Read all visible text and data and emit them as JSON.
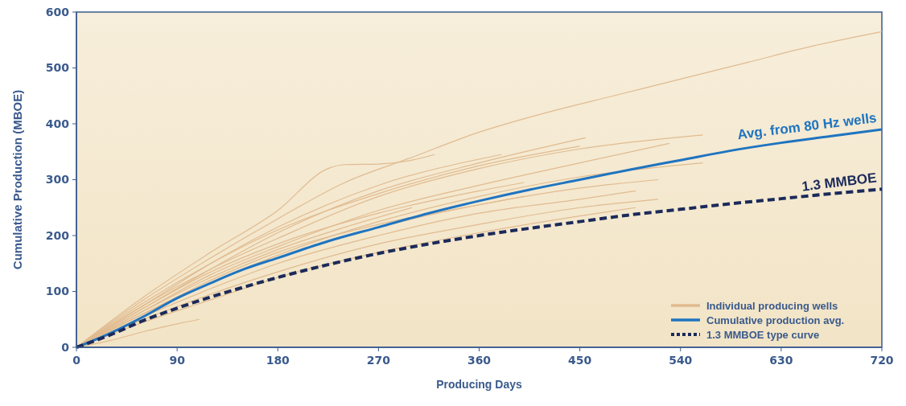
{
  "chart_data": {
    "type": "line",
    "xlabel": "Producing Days",
    "ylabel": "Cumulative Production (MBOE)",
    "xlim": [
      0,
      720
    ],
    "ylim": [
      0,
      600
    ],
    "xticks": [
      0,
      90,
      180,
      270,
      360,
      450,
      540,
      630,
      720
    ],
    "yticks": [
      0,
      100,
      200,
      300,
      400,
      500,
      600
    ],
    "grid": false,
    "legend": "bottom right",
    "marker": "none",
    "series": [
      {
        "name": "Individual producing wells",
        "color": "#e0bb90",
        "x": [
          0,
          60,
          120,
          180,
          240,
          300,
          360,
          420,
          480,
          540,
          600,
          660,
          720
        ],
        "values": [
          0,
          85,
          160,
          230,
          295,
          340,
          385,
          420,
          450,
          480,
          510,
          540,
          565
        ]
      },
      {
        "color": "#e0bb90",
        "x": [
          0,
          60,
          120,
          180,
          225,
          240,
          270,
          300,
          320
        ],
        "values": [
          0,
          90,
          170,
          245,
          320,
          327,
          328,
          335,
          345
        ]
      },
      {
        "color": "#e0bb90",
        "x": [
          0,
          60,
          120,
          180,
          270,
          360,
          450,
          560
        ],
        "values": [
          0,
          75,
          140,
          195,
          270,
          320,
          355,
          380
        ]
      },
      {
        "color": "#e0bb90",
        "x": [
          0,
          60,
          120,
          180,
          270,
          360,
          455
        ],
        "values": [
          0,
          70,
          140,
          205,
          280,
          330,
          375
        ]
      },
      {
        "color": "#e0bb90",
        "x": [
          0,
          60,
          120,
          180,
          270,
          380
        ],
        "values": [
          0,
          75,
          150,
          215,
          290,
          345
        ]
      },
      {
        "color": "#e0bb90",
        "x": [
          0,
          60,
          120,
          180,
          270,
          360,
          450,
          530
        ],
        "values": [
          0,
          65,
          130,
          180,
          245,
          290,
          330,
          365
        ]
      },
      {
        "color": "#e0bb90",
        "x": [
          0,
          60,
          120,
          180,
          270,
          360,
          450,
          560
        ],
        "values": [
          0,
          60,
          115,
          165,
          225,
          270,
          305,
          330
        ]
      },
      {
        "color": "#e0bb90",
        "x": [
          0,
          60,
          120,
          180,
          270,
          360,
          450,
          520
        ],
        "values": [
          0,
          60,
          115,
          160,
          215,
          255,
          285,
          300
        ]
      },
      {
        "color": "#e0bb90",
        "x": [
          0,
          60,
          120,
          180,
          270,
          360,
          400
        ],
        "values": [
          0,
          70,
          135,
          185,
          240,
          280,
          295
        ]
      },
      {
        "color": "#e0bb90",
        "x": [
          0,
          60,
          120,
          180,
          270,
          360,
          450,
          500
        ],
        "values": [
          0,
          55,
          105,
          150,
          200,
          240,
          265,
          280
        ]
      },
      {
        "color": "#e0bb90",
        "x": [
          0,
          60,
          120,
          180,
          270,
          360,
          450,
          520
        ],
        "values": [
          0,
          50,
          95,
          135,
          185,
          220,
          250,
          265
        ]
      },
      {
        "color": "#e0bb90",
        "x": [
          0,
          60,
          120,
          180,
          270,
          360,
          450,
          500
        ],
        "values": [
          0,
          45,
          85,
          125,
          170,
          205,
          235,
          250
        ]
      },
      {
        "color": "#e0bb90",
        "x": [
          0,
          60,
          120,
          180,
          240,
          300
        ],
        "values": [
          0,
          65,
          125,
          175,
          215,
          250
        ]
      },
      {
        "color": "#e0bb90",
        "x": [
          0,
          60,
          120,
          180,
          270,
          360,
          400
        ],
        "values": [
          0,
          60,
          120,
          170,
          220,
          255,
          270
        ]
      },
      {
        "color": "#e0bb90",
        "x": [
          0,
          30,
          60,
          90,
          110
        ],
        "values": [
          0,
          12,
          28,
          42,
          50
        ]
      },
      {
        "color": "#e0bb90",
        "x": [
          0,
          60,
          120,
          180,
          270,
          360,
          450
        ],
        "values": [
          0,
          80,
          150,
          210,
          275,
          325,
          360
        ]
      },
      {
        "name": "Cumulative production avg.",
        "color": "#1f74c0",
        "x": [
          0,
          30,
          60,
          90,
          120,
          150,
          180,
          225,
          270,
          315,
          360,
          405,
          450,
          495,
          540,
          585,
          630,
          675,
          720
        ],
        "values": [
          0,
          25,
          55,
          88,
          115,
          140,
          160,
          190,
          215,
          240,
          262,
          282,
          300,
          318,
          335,
          352,
          366,
          378,
          390
        ]
      },
      {
        "name": "1.3 MMBOE type curve",
        "color": "#1b2a5a",
        "line_style": "dashed",
        "x": [
          0,
          30,
          60,
          90,
          120,
          150,
          180,
          225,
          270,
          315,
          360,
          405,
          450,
          495,
          540,
          585,
          630,
          675,
          720
        ],
        "values": [
          0,
          22,
          48,
          70,
          90,
          108,
          125,
          148,
          168,
          185,
          200,
          213,
          225,
          237,
          247,
          257,
          266,
          275,
          283
        ]
      }
    ],
    "annotations": [
      {
        "text": "Avg. from 80 Hz wells",
        "x": 720,
        "y": 390
      },
      {
        "text": "1.3 MMBOE",
        "x": 720,
        "y": 283
      }
    ]
  }
}
